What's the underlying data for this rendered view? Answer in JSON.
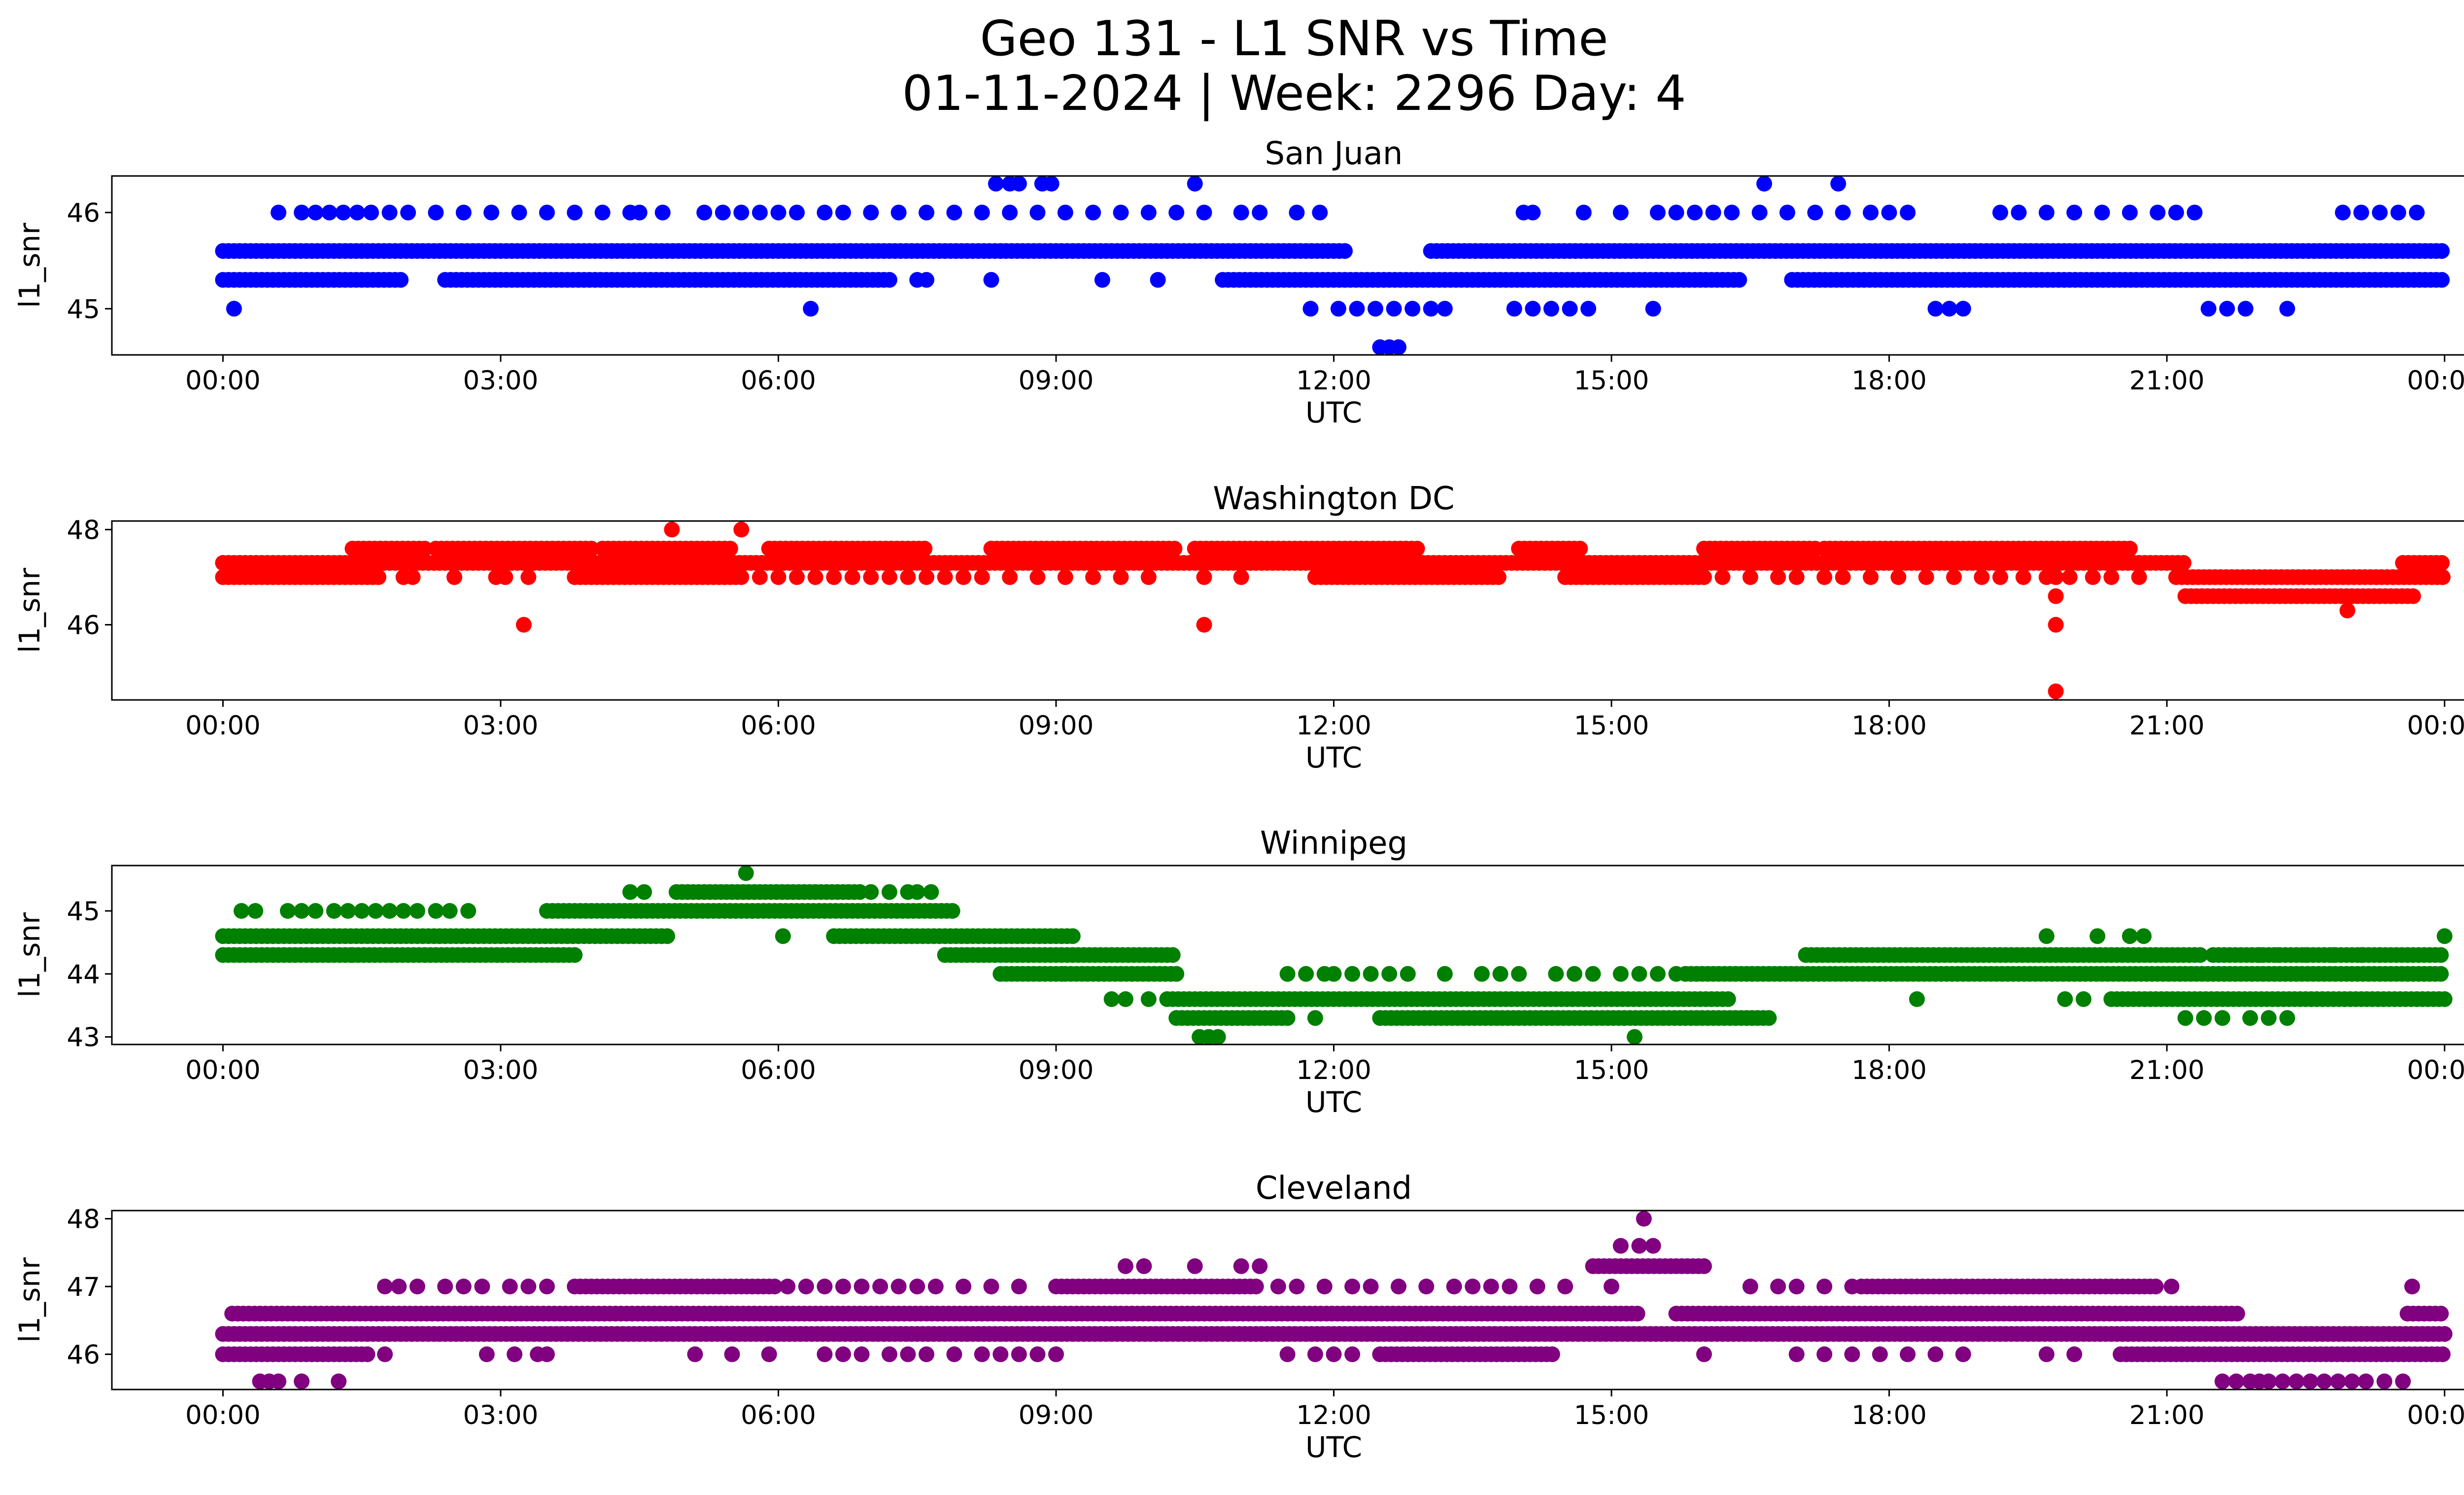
{
  "figure": {
    "title_line1": "Geo 131 - L1 SNR vs Time",
    "title_line2": "01-11-2024 | Week: 2296 Day: 4"
  },
  "chart_data": [
    {
      "type": "scatter",
      "title": "San Juan",
      "xlabel": "UTC",
      "ylabel": "l1_snr",
      "color": "#0000ff",
      "xlim": [
        -1.2,
        25.2
      ],
      "ylim": [
        44.52,
        46.38
      ],
      "yticks": [
        45,
        46
      ],
      "xticks": [
        "00:00",
        "03:00",
        "06:00",
        "09:00",
        "12:00",
        "15:00",
        "18:00",
        "21:00",
        "00:00"
      ],
      "bands": [
        {
          "y": 45.6,
          "ranges": [
            [
              0.0,
              12.15
            ],
            [
              13.05,
              24.0
            ]
          ]
        },
        {
          "y": 45.3,
          "ranges": [
            [
              0.0,
              1.95
            ],
            [
              2.4,
              7.25
            ],
            [
              10.8,
              16.4
            ],
            [
              16.95,
              24.0
            ]
          ]
        }
      ],
      "sparse": [
        {
          "y": 46.0,
          "x": [
            0.6,
            0.85,
            1.0,
            1.15,
            1.3,
            1.45,
            1.6,
            1.8,
            2.0,
            2.3,
            2.6,
            2.9,
            3.2,
            3.5,
            3.8,
            4.1,
            4.4,
            4.5,
            4.75,
            5.2,
            5.4,
            5.6,
            5.8,
            6.0,
            6.2,
            6.5,
            6.7,
            7.0,
            7.3,
            7.6,
            7.9,
            8.2,
            8.5,
            8.8,
            9.1,
            9.4,
            9.7,
            10.0,
            10.3,
            10.6,
            11.0,
            11.2,
            11.6,
            11.85,
            14.05,
            14.15,
            14.7,
            15.1,
            15.5,
            15.7,
            15.9,
            16.1,
            16.3,
            16.6,
            16.9,
            17.2,
            17.5,
            17.8,
            18.0,
            18.2,
            19.2,
            19.4,
            19.7,
            20.0,
            20.3,
            20.6,
            20.9,
            21.1,
            21.3,
            22.9,
            23.1,
            23.3,
            23.5,
            23.7
          ]
        },
        {
          "y": 45.0,
          "x": [
            0.12,
            6.35,
            11.75,
            12.05,
            12.25,
            12.45,
            12.65,
            12.85,
            13.05,
            13.2,
            13.95,
            14.15,
            14.35,
            14.55,
            14.75,
            15.45,
            18.5,
            18.65,
            18.8,
            21.45,
            21.65,
            21.85,
            22.3
          ]
        },
        {
          "y": 46.3,
          "x": [
            8.35,
            8.5,
            8.6,
            8.85,
            8.95,
            10.5,
            16.65,
            17.45
          ]
        },
        {
          "y": 45.3,
          "x": [
            7.5,
            7.6,
            8.3,
            9.5,
            10.1
          ]
        },
        {
          "y": 44.6,
          "x": [
            12.5,
            12.6,
            12.7
          ]
        }
      ]
    },
    {
      "type": "scatter",
      "title": "Washington DC",
      "xlabel": "UTC",
      "ylabel": "l1_snr",
      "color": "#ff0000",
      "xlim": [
        -1.2,
        25.2
      ],
      "ylim": [
        44.42,
        48.18
      ],
      "yticks": [
        46,
        48
      ],
      "xticks": [
        "00:00",
        "03:00",
        "06:00",
        "09:00",
        "12:00",
        "15:00",
        "18:00",
        "21:00",
        "00:00"
      ],
      "bands": [
        {
          "y": 47.3,
          "ranges": [
            [
              0.0,
              21.2
            ],
            [
              23.55,
              24.0
            ]
          ]
        },
        {
          "y": 47.0,
          "ranges": [
            [
              0.0,
              1.7
            ],
            [
              3.8,
              5.6
            ],
            [
              11.8,
              13.8
            ],
            [
              14.5,
              16.0
            ],
            [
              21.1,
              24.0
            ]
          ]
        },
        {
          "y": 47.6,
          "ranges": [
            [
              1.4,
              2.2
            ],
            [
              2.3,
              4.0
            ],
            [
              4.1,
              5.5
            ],
            [
              5.9,
              7.6
            ],
            [
              8.3,
              10.3
            ],
            [
              10.5,
              12.9
            ],
            [
              14.0,
              14.7
            ],
            [
              16.0,
              17.2
            ],
            [
              17.3,
              20.6
            ]
          ]
        },
        {
          "y": 46.6,
          "ranges": [
            [
              21.2,
              23.7
            ]
          ]
        }
      ],
      "sparse": [
        {
          "y": 47.0,
          "x": [
            1.95,
            2.05,
            2.5,
            2.95,
            3.05,
            3.3,
            5.8,
            6.0,
            6.2,
            6.4,
            6.6,
            6.8,
            7.0,
            7.2,
            7.4,
            7.6,
            7.8,
            8.0,
            8.2,
            8.5,
            8.8,
            9.1,
            9.4,
            9.7,
            10.0,
            10.6,
            11.0,
            16.2,
            16.5,
            16.8,
            17.0,
            17.3,
            17.5,
            17.8,
            18.1,
            18.4,
            18.7,
            19.0,
            19.2,
            19.45,
            19.7,
            19.8,
            19.95,
            20.2,
            20.4,
            20.7
          ]
        },
        {
          "y": 48.0,
          "x": [
            4.85,
            5.6
          ]
        },
        {
          "y": 46.0,
          "x": [
            3.25,
            10.6,
            19.8
          ]
        },
        {
          "y": 46.6,
          "x": [
            19.8
          ]
        },
        {
          "y": 44.6,
          "x": [
            19.8
          ]
        },
        {
          "y": 46.3,
          "x": [
            22.95
          ]
        }
      ]
    },
    {
      "type": "scatter",
      "title": "Winnipeg",
      "xlabel": "UTC",
      "ylabel": "l1_snr",
      "color": "#008000",
      "xlim": [
        -1.2,
        25.2
      ],
      "ylim": [
        42.88,
        45.72
      ],
      "yticks": [
        43,
        44,
        45
      ],
      "xticks": [
        "00:00",
        "03:00",
        "06:00",
        "09:00",
        "12:00",
        "15:00",
        "18:00",
        "21:00",
        "00:00"
      ],
      "bands": [
        {
          "y": 44.6,
          "ranges": [
            [
              0.0,
              4.8
            ],
            [
              6.6,
              9.2
            ]
          ]
        },
        {
          "y": 44.3,
          "ranges": [
            [
              0.0,
              1.4
            ],
            [
              1.4,
              3.8
            ],
            [
              7.8,
              10.3
            ],
            [
              17.1,
              21.4
            ],
            [
              21.5,
              24.0
            ]
          ]
        },
        {
          "y": 45.0,
          "ranges": [
            [
              3.5,
              7.9
            ]
          ]
        },
        {
          "y": 45.3,
          "ranges": [
            [
              4.9,
              6.9
            ]
          ]
        },
        {
          "y": 44.0,
          "ranges": [
            [
              8.4,
              9.1
            ],
            [
              9.1,
              10.3
            ],
            [
              15.8,
              24.0
            ]
          ]
        },
        {
          "y": 43.6,
          "ranges": [
            [
              10.2,
              16.3
            ],
            [
              20.4,
              24.0
            ]
          ]
        },
        {
          "y": 43.3,
          "ranges": [
            [
              10.3,
              11.5
            ],
            [
              12.5,
              16.7
            ]
          ]
        }
      ],
      "sparse": [
        {
          "y": 45.0,
          "x": [
            0.2,
            0.35,
            0.7,
            0.85,
            1.0,
            1.2,
            1.35,
            1.5,
            1.65,
            1.8,
            1.95,
            2.1,
            2.3,
            2.45,
            2.65
          ]
        },
        {
          "y": 45.3,
          "x": [
            4.4,
            4.55,
            7.0,
            7.2,
            7.4,
            7.5,
            7.65
          ]
        },
        {
          "y": 45.6,
          "x": [
            5.65
          ]
        },
        {
          "y": 44.6,
          "x": [
            6.05,
            19.7,
            20.25,
            20.6,
            20.75,
            24.0
          ]
        },
        {
          "y": 44.0,
          "x": [
            11.5,
            11.7,
            11.9,
            12.0,
            12.2,
            12.4,
            12.6,
            12.8,
            13.2,
            13.6,
            13.8,
            14.0,
            14.4,
            14.6,
            14.8,
            15.1,
            15.3,
            15.5,
            15.7
          ]
        },
        {
          "y": 44.3,
          "x": [
            22.0,
            22.2,
            22.5,
            22.8,
            23.1,
            23.3
          ]
        },
        {
          "y": 43.6,
          "x": [
            9.6,
            9.75,
            10.0,
            18.3,
            19.9,
            20.1
          ]
        },
        {
          "y": 43.3,
          "x": [
            11.8,
            21.2,
            21.4,
            21.6,
            21.9,
            22.1,
            22.3
          ]
        },
        {
          "y": 43.0,
          "x": [
            10.55,
            10.65,
            10.75,
            15.25
          ]
        }
      ]
    },
    {
      "type": "scatter",
      "title": "Cleveland",
      "xlabel": "UTC",
      "ylabel": "l1_snr",
      "color": "#800080",
      "xlim": [
        -1.2,
        25.2
      ],
      "ylim": [
        45.48,
        48.12
      ],
      "yticks": [
        46,
        47,
        48
      ],
      "xticks": [
        "00:00",
        "03:00",
        "06:00",
        "09:00",
        "12:00",
        "15:00",
        "18:00",
        "21:00",
        "00:00"
      ],
      "bands": [
        {
          "y": 46.3,
          "ranges": [
            [
              0.0,
              24.0
            ]
          ]
        },
        {
          "y": 46.6,
          "ranges": [
            [
              0.1,
              15.3
            ],
            [
              15.7,
              21.8
            ],
            [
              23.6,
              24.0
            ]
          ]
        },
        {
          "y": 46.0,
          "ranges": [
            [
              0.0,
              1.6
            ],
            [
              12.5,
              14.4
            ],
            [
              20.5,
              24.0
            ]
          ]
        },
        {
          "y": 47.0,
          "ranges": [
            [
              3.8,
              6.0
            ],
            [
              9.0,
              11.2
            ],
            [
              17.7,
              20.9
            ]
          ]
        },
        {
          "y": 47.3,
          "ranges": [
            [
              14.8,
              16.0
            ]
          ]
        }
      ],
      "sparse": [
        {
          "y": 45.6,
          "x": [
            0.4,
            0.5,
            0.6,
            0.85,
            1.25,
            21.6,
            21.75,
            21.9,
            22.0,
            22.1,
            22.25,
            22.4,
            22.55,
            22.7,
            22.85,
            23.0,
            23.15,
            23.35,
            23.55
          ]
        },
        {
          "y": 46.0,
          "x": [
            1.75,
            2.85,
            3.15,
            3.4,
            3.5,
            5.1,
            5.5,
            5.9,
            6.5,
            6.7,
            6.9,
            7.2,
            7.4,
            7.6,
            7.9,
            8.2,
            8.4,
            8.6,
            8.8,
            9.0,
            11.5,
            11.8,
            12.0,
            12.2,
            16.0,
            17.0,
            17.3,
            17.6,
            17.9,
            18.2,
            18.5,
            18.8,
            19.7,
            20.0
          ]
        },
        {
          "y": 47.0,
          "x": [
            1.75,
            1.9,
            2.1,
            2.4,
            2.6,
            2.8,
            3.1,
            3.3,
            3.5,
            6.1,
            6.3,
            6.5,
            6.7,
            6.9,
            7.1,
            7.3,
            7.5,
            7.7,
            8.0,
            8.3,
            8.6,
            11.4,
            11.6,
            11.9,
            12.2,
            12.4,
            12.7,
            13.0,
            13.3,
            13.5,
            13.7,
            13.9,
            14.2,
            14.5,
            15.0,
            16.5,
            16.8,
            17.0,
            17.3,
            17.6,
            21.05,
            23.65
          ]
        },
        {
          "y": 47.3,
          "x": [
            9.75,
            9.95,
            10.5,
            11.0,
            11.2
          ]
        },
        {
          "y": 47.6,
          "x": [
            15.1,
            15.3,
            15.45
          ]
        },
        {
          "y": 48.0,
          "x": [
            15.35
          ]
        }
      ]
    }
  ]
}
